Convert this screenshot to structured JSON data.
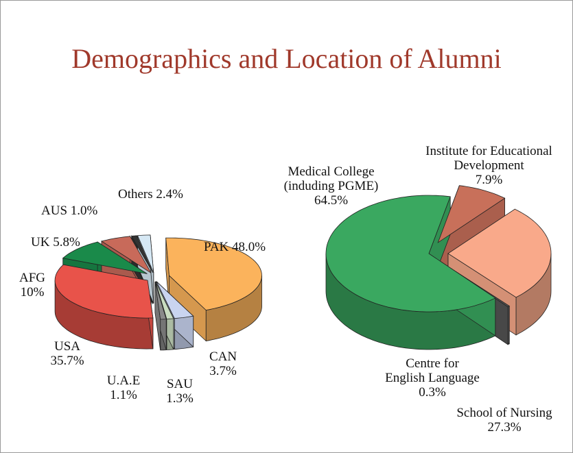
{
  "title": "Demographics and Location of Alumni",
  "chart_data": [
    {
      "type": "pie",
      "categories": [
        "PAK",
        "CAN",
        "SAU",
        "U.A.E",
        "USA",
        "AFG",
        "UK",
        "AUS",
        "Others"
      ],
      "values": [
        48.0,
        3.7,
        1.3,
        1.1,
        35.7,
        10,
        5.8,
        1.0,
        2.4
      ],
      "value_labels": [
        "48.0%",
        "3.7%",
        "1.3%",
        "1.1%",
        "35.7%",
        "10%",
        "5.8%",
        "1.0%",
        "2.4%"
      ],
      "colors": [
        "#fbb35c",
        "#c9d4f0",
        "#c9dcc0",
        "#8a8a8a",
        "#e8534a",
        "#1a8a4a",
        "#c86a5a",
        "#333333",
        "#d6e8f4"
      ]
    },
    {
      "type": "pie",
      "categories": [
        "Institute for Educational Development",
        "School of Nursing",
        "Centre for English Language",
        "Medical College (induding PGME)"
      ],
      "values": [
        7.9,
        27.3,
        0.3,
        64.5
      ],
      "value_labels": [
        "7.9%",
        "27.3%",
        "0.3%",
        "64.5%"
      ],
      "colors": [
        "#c8705a",
        "#f9a98a",
        "#555555",
        "#3aa860"
      ]
    }
  ]
}
